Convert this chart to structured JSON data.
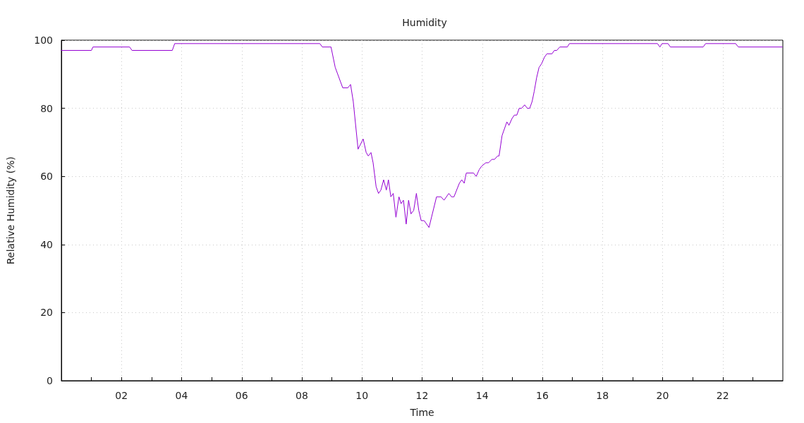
{
  "chart_data": {
    "type": "line",
    "title": "Humidity",
    "xlabel": "Time",
    "ylabel": "Relative Humidity (%)",
    "x": [
      0,
      1.0,
      1.05,
      2.27,
      2.35,
      3.69,
      3.77,
      8.6,
      8.68,
      8.97,
      9.11,
      9.36,
      9.53,
      9.62,
      9.71,
      9.87,
      10.04,
      10.14,
      10.21,
      10.3,
      10.37,
      10.47,
      10.55,
      10.63,
      10.72,
      10.81,
      10.88,
      10.96,
      11.04,
      11.13,
      11.23,
      11.3,
      11.38,
      11.47,
      11.55,
      11.63,
      11.72,
      11.81,
      11.89,
      11.97,
      12.07,
      12.23,
      12.48,
      12.63,
      12.73,
      12.89,
      12.98,
      13.06,
      13.24,
      13.32,
      13.4,
      13.47,
      13.71,
      13.8,
      13.9,
      13.98,
      14.12,
      14.21,
      14.32,
      14.41,
      14.51,
      14.56,
      14.66,
      14.82,
      14.89,
      14.99,
      15.07,
      15.15,
      15.23,
      15.31,
      15.41,
      15.5,
      15.58,
      15.66,
      15.73,
      15.81,
      15.89,
      15.97,
      16.07,
      16.15,
      16.32,
      16.4,
      16.48,
      16.58,
      16.83,
      16.9,
      19.83,
      19.91,
      19.98,
      20.18,
      20.26,
      21.35,
      21.43,
      22.43,
      22.52,
      23.98
    ],
    "series": [
      {
        "color": "#9400d3",
        "values": [
          97,
          97,
          98,
          98,
          97,
          97,
          99,
          99,
          98,
          98,
          92,
          86,
          86,
          87,
          82,
          68,
          71,
          67,
          66,
          67,
          64,
          57,
          55,
          56,
          59,
          56,
          59,
          54,
          55,
          48,
          54,
          52,
          53,
          46,
          53,
          49,
          50,
          55,
          50,
          47,
          47,
          45,
          54,
          54,
          53,
          55,
          54,
          54,
          58,
          59,
          58,
          61,
          61,
          60,
          62,
          63,
          64,
          64,
          65,
          65,
          66,
          66,
          72,
          76,
          75,
          77,
          78,
          78,
          80,
          80,
          81,
          80,
          80,
          82,
          85,
          89,
          92,
          93,
          95,
          96,
          96,
          97,
          97,
          98,
          98,
          99,
          99,
          98,
          99,
          99,
          98,
          98,
          99,
          99,
          98,
          98
        ]
      }
    ],
    "xlim": [
      0,
      24
    ],
    "xticks": [
      {
        "value": 1,
        "label": null
      },
      {
        "value": 2,
        "label": "02"
      },
      {
        "value": 3,
        "label": null
      },
      {
        "value": 4,
        "label": "04"
      },
      {
        "value": 5,
        "label": null
      },
      {
        "value": 6,
        "label": "06"
      },
      {
        "value": 7,
        "label": null
      },
      {
        "value": 8,
        "label": "08"
      },
      {
        "value": 9,
        "label": null
      },
      {
        "value": 10,
        "label": "10"
      },
      {
        "value": 11,
        "label": null
      },
      {
        "value": 12,
        "label": "12"
      },
      {
        "value": 13,
        "label": null
      },
      {
        "value": 14,
        "label": "14"
      },
      {
        "value": 15,
        "label": null
      },
      {
        "value": 16,
        "label": "16"
      },
      {
        "value": 17,
        "label": null
      },
      {
        "value": 18,
        "label": "18"
      },
      {
        "value": 19,
        "label": null
      },
      {
        "value": 20,
        "label": "20"
      },
      {
        "value": 21,
        "label": null
      },
      {
        "value": 22,
        "label": "22"
      },
      {
        "value": 23,
        "label": null
      }
    ],
    "ylim": [
      0,
      100
    ],
    "yticks": [
      0,
      20,
      40,
      60,
      80,
      100
    ],
    "grid": true,
    "marker": "none",
    "line_style": "solid"
  }
}
